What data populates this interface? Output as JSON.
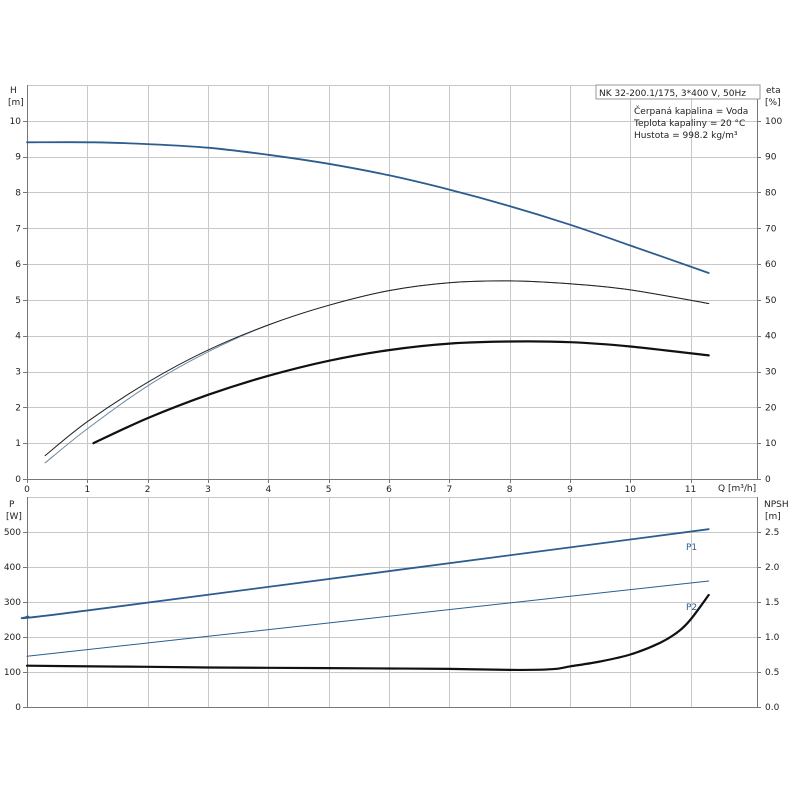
{
  "chart_data": [
    {
      "type": "line",
      "panel": "top",
      "xlabel": "Q [m³/h]",
      "ylabel_left": "H",
      "ylabel_left_unit": "[m]",
      "ylabel_right": "eta",
      "ylabel_right_unit": "[%]",
      "xlim": [
        0,
        12.1
      ],
      "ylim_left": [
        0,
        11
      ],
      "ylim_right": [
        0,
        110
      ],
      "xticks": [
        "0",
        "1",
        "2",
        "3",
        "4",
        "5",
        "6",
        "7",
        "8",
        "9",
        "10",
        "11"
      ],
      "yticks_left": [
        "0",
        "1",
        "2",
        "3",
        "4",
        "5",
        "6",
        "7",
        "8",
        "9",
        "10"
      ],
      "yticks_right": [
        "0",
        "10",
        "20",
        "30",
        "40",
        "50",
        "60",
        "70",
        "80",
        "90",
        "100"
      ],
      "grid": true,
      "info": [
        "NK 32-200.1/175, 3*400 V, 50Hz",
        "Čerpaná kapalina = Voda",
        "Teplota kapaliny = 20 °C",
        "Hustota = 998.2 kg/m³"
      ],
      "series": [
        {
          "axis": "left",
          "color": "#2b5d8f",
          "width": 1.8,
          "x": [
            0,
            1.1,
            2,
            3,
            4,
            5,
            6,
            7,
            8,
            9,
            10,
            11.3
          ],
          "y": [
            9.4,
            9.4,
            9.35,
            9.25,
            9.05,
            8.8,
            8.48,
            8.08,
            7.62,
            7.1,
            6.52,
            5.75
          ]
        },
        {
          "axis": "right",
          "color": "#6e8aa3",
          "width": 1.0,
          "x": [
            0.3,
            1,
            2,
            3,
            4,
            5,
            6,
            7,
            8,
            9,
            10,
            11.3
          ],
          "y": [
            4.5,
            14,
            26,
            35.5,
            43,
            48.5,
            52.6,
            54.8,
            55.3,
            54.5,
            52.8,
            49
          ]
        },
        {
          "axis": "right",
          "color": "#222222",
          "width": 1.0,
          "x": [
            0.3,
            1,
            2,
            3,
            4,
            5,
            6,
            7,
            8,
            9,
            10,
            11.3
          ],
          "y": [
            6.5,
            16,
            27,
            36,
            43,
            48.5,
            52.6,
            54.8,
            55.3,
            54.5,
            52.8,
            49
          ]
        },
        {
          "axis": "left",
          "color": "#111111",
          "width": 2.2,
          "x": [
            1.1,
            2,
            3,
            4,
            5,
            6,
            7,
            8,
            9,
            10,
            11.3
          ],
          "y": [
            1.0,
            1.7,
            2.35,
            2.88,
            3.3,
            3.6,
            3.78,
            3.84,
            3.82,
            3.7,
            3.45
          ]
        }
      ]
    },
    {
      "type": "line",
      "panel": "bottom",
      "ylabel_left": "P",
      "ylabel_left_unit": "[W]",
      "ylabel_right": "NPSH",
      "ylabel_right_unit": "[m]",
      "xlim": [
        0,
        12.1
      ],
      "ylim_left": [
        0,
        600
      ],
      "ylim_right": [
        0,
        3.0
      ],
      "yticks_left": [
        "0",
        "100",
        "200",
        "300",
        "400",
        "500"
      ],
      "yticks_right": [
        "0.0",
        "0.5",
        "1.0",
        "1.5",
        "2.0",
        "2.5"
      ],
      "grid": true,
      "series": [
        {
          "name": "P1",
          "axis": "left",
          "color": "#2b5d8f",
          "width": 1.8,
          "x": [
            0,
            1.1,
            11.3
          ],
          "y": [
            258,
            278,
            508
          ]
        },
        {
          "name": "P2",
          "axis": "left",
          "color": "#2b5d8f",
          "width": 1.0,
          "x": [
            0,
            11.3
          ],
          "y": [
            145,
            360
          ]
        },
        {
          "axis": "right",
          "color": "#111111",
          "width": 2.2,
          "x": [
            0,
            1.1,
            2,
            3,
            4,
            5,
            6,
            7,
            8,
            8.7,
            9,
            9.5,
            10,
            10.5,
            10.8,
            11,
            11.3
          ],
          "y": [
            0.59,
            0.58,
            0.575,
            0.565,
            0.56,
            0.555,
            0.55,
            0.545,
            0.53,
            0.54,
            0.58,
            0.65,
            0.75,
            0.92,
            1.08,
            1.25,
            1.6
          ]
        }
      ]
    }
  ]
}
